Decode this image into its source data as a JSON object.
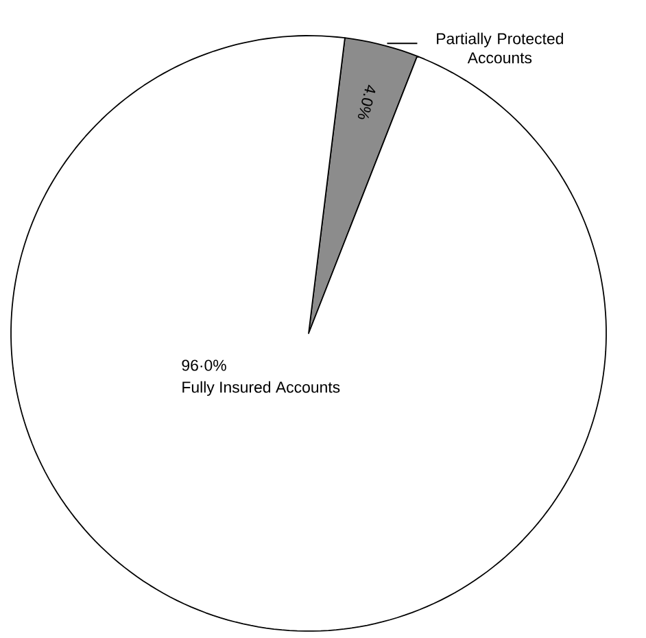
{
  "chart_data": {
    "type": "pie",
    "categories": [
      "Partially Protected Accounts",
      "Fully Insured Accounts"
    ],
    "values": [
      4.0,
      96.0
    ],
    "colors": [
      "#8c8c8c",
      "#ffffff"
    ],
    "value_labels": [
      "4.0%",
      "96·0%"
    ]
  }
}
